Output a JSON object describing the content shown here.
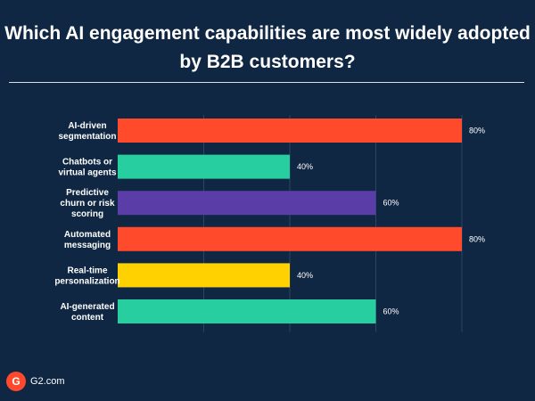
{
  "title_lines": [
    "Which AI engagement capabilities are most widely adopted",
    "by B2B customers?"
  ],
  "footer": {
    "logo_mark": "G",
    "source": "G2.com"
  },
  "colors": {
    "background": "#0f2742",
    "orange": "#ff4a2c",
    "teal": "#27cea0",
    "purple": "#5a3da6",
    "yellow": "#ffd100",
    "gridline": "#2b4565"
  },
  "chart_data": {
    "type": "bar",
    "orientation": "horizontal",
    "title": "Which AI engagement capabilities are most widely adopted by B2B customers?",
    "categories": [
      [
        "AI-driven",
        "segmentation"
      ],
      [
        "Chatbots or",
        "virtual agents"
      ],
      [
        "Predictive",
        "churn or risk",
        "scoring"
      ],
      [
        "Automated",
        "messaging"
      ],
      [
        "Real-time",
        "personalization"
      ],
      [
        "AI-generated",
        "content"
      ]
    ],
    "values": [
      80,
      40,
      60,
      80,
      40,
      60
    ],
    "value_labels": [
      "80%",
      "40%",
      "60%",
      "80%",
      "40%",
      "60%"
    ],
    "bar_colors": [
      "#ff4a2c",
      "#27cea0",
      "#5a3da6",
      "#ff4a2c",
      "#ffd100",
      "#27cea0"
    ],
    "xlim": [
      0,
      80
    ],
    "xlabel": "",
    "ylabel": "",
    "grid": true
  }
}
